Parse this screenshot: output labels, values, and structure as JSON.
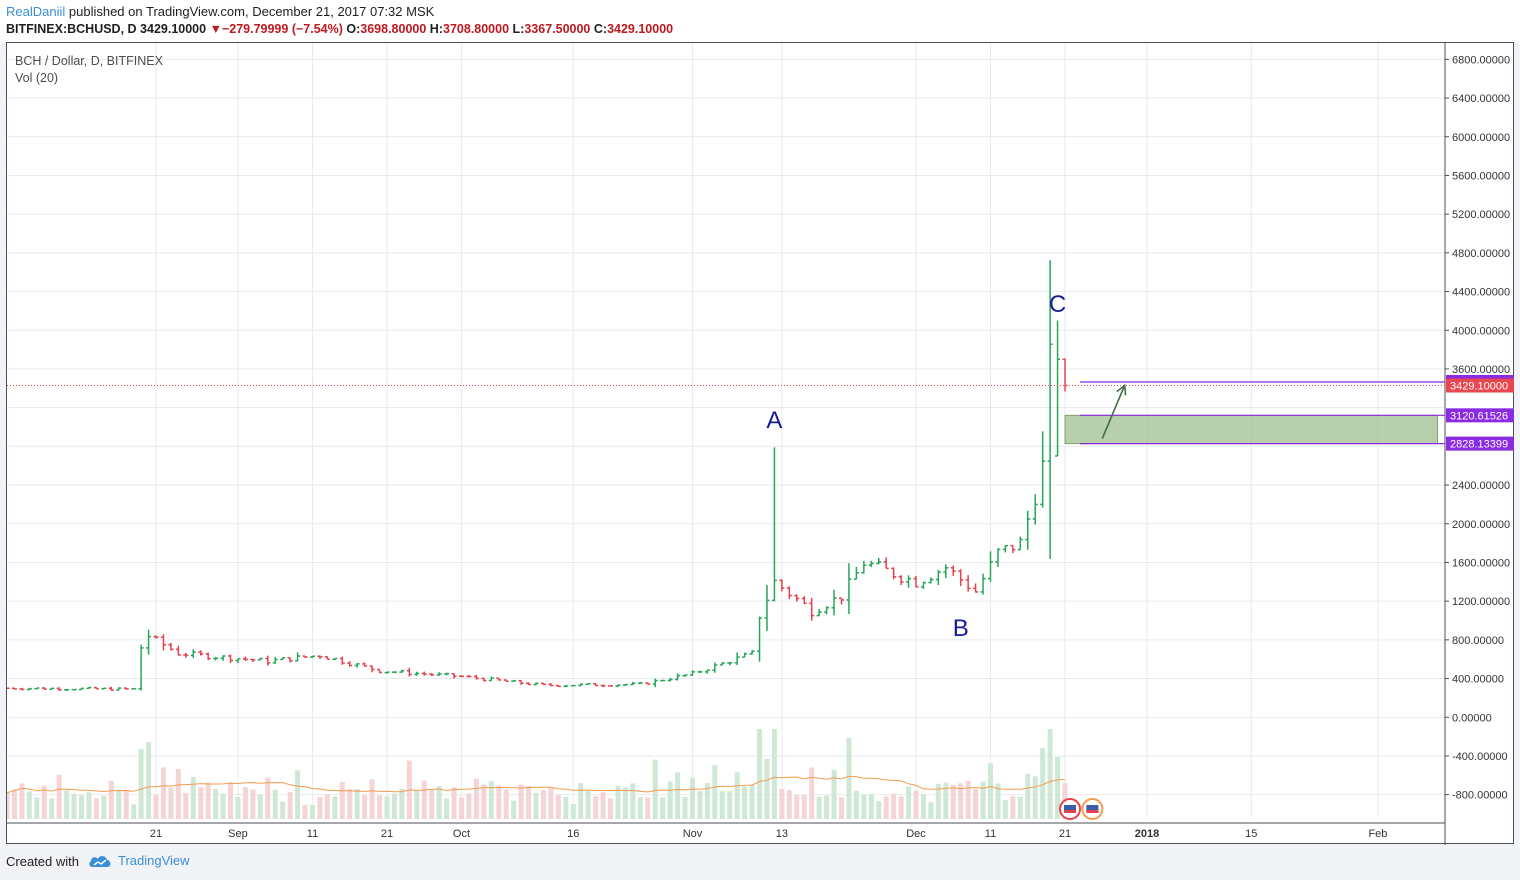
{
  "header": {
    "author": "RealDaniil",
    "published_text": "published on TradingView.com, December 21, 2017 07:32 MSK",
    "symbol": "BITFINEX:BCHUSD, D",
    "last": "3429.10000",
    "change": "−279.79999 (−7.54%)",
    "o_label": "O:",
    "o_value": "3698.80000",
    "h_label": "H:",
    "h_value": "3708.80000",
    "l_label": "L:",
    "l_value": "3367.50000",
    "c_label": "C:",
    "c_value": "3429.10000"
  },
  "legend": {
    "series_title": "BCH / Dollar, D, BITFINEX",
    "volume_title": "Vol (20)"
  },
  "footer": {
    "created_with": "Created with",
    "brand": "TradingView"
  },
  "colors": {
    "up": "#26a65b",
    "down": "#e8414b",
    "grid": "#e7eaee",
    "purple": "#8a2be2",
    "zone": "#9fbf8f",
    "ma": "#f39c4d",
    "label_text": "#1a1a9a",
    "price_tag": "#e8474f",
    "arrow": "#3f6f46"
  },
  "chart_data": {
    "type": "ohlc",
    "title": "BCH / Dollar, D, BITFINEX",
    "indicator": "Vol (20)",
    "y_range": [
      -1000,
      7000
    ],
    "y_ticks": [
      "6800.00000",
      "6400.00000",
      "6000.00000",
      "5600.00000",
      "5200.00000",
      "4800.00000",
      "4400.00000",
      "4000.00000",
      "3600.00000",
      "2400.00000",
      "2000.00000",
      "1600.00000",
      "1200.00000",
      "800.00000",
      "400.00000",
      "0.00000",
      "-400.00000",
      "-800.00000"
    ],
    "y_tick_values": [
      6800,
      6400,
      6000,
      5600,
      5200,
      4800,
      4400,
      4000,
      3600,
      2400,
      2000,
      1600,
      1200,
      800,
      400,
      0,
      -400,
      -800
    ],
    "x_ticks": [
      "21",
      "Sep",
      "11",
      "21",
      "Oct",
      "16",
      "Nov",
      "13",
      "Dec",
      "11",
      "21",
      "2018",
      "15",
      "Feb"
    ],
    "x_tick_dates": [
      "2017-08-21",
      "2017-09-01",
      "2017-09-11",
      "2017-09-21",
      "2017-10-01",
      "2017-10-16",
      "2017-11-01",
      "2017-11-13",
      "2017-12-01",
      "2017-12-11",
      "2017-12-21",
      "2018-01-01",
      "2018-01-15",
      "2018-02-01"
    ],
    "x_range": [
      "2017-08-01",
      "2018-02-10"
    ],
    "price_labels": [
      {
        "text": "3465.32534",
        "value": 3465.32534,
        "kind": "purple"
      },
      {
        "text": "3429.10000",
        "value": 3429.1,
        "kind": "last"
      },
      {
        "text": "3120.61526",
        "value": 3120.61526,
        "kind": "purple"
      },
      {
        "text": "2828.13399",
        "value": 2828.13399,
        "kind": "purple"
      }
    ],
    "current_price": 3429.1,
    "annotations": [
      {
        "text": "A",
        "date": "2017-11-12",
        "value": 2990
      },
      {
        "text": "B",
        "date": "2017-12-07",
        "value": 840
      },
      {
        "text": "C",
        "date": "2017-12-20",
        "value": 4190
      }
    ],
    "levels": [
      {
        "value": 3465.32534,
        "from": "2017-12-23",
        "to": "2018-02-10"
      },
      {
        "value": 3120.61526,
        "from": "2017-12-23",
        "to": "2018-02-10"
      },
      {
        "value": 2828.13399,
        "from": "2017-12-23",
        "to": "2018-02-10"
      }
    ],
    "zone": {
      "top": 3120.61526,
      "bottom": 2828.13399,
      "from": "2017-12-21",
      "to": "2018-02-09"
    },
    "arrow": {
      "from_date": "2017-12-26",
      "from_value": 2880,
      "to_date": "2017-12-29",
      "to_value": 3430
    },
    "ohlc_anchors": [
      {
        "date": "2017-08-01",
        "close": 300
      },
      {
        "date": "2017-08-18",
        "close": 290
      },
      {
        "date": "2017-08-19",
        "close": 720
      },
      {
        "date": "2017-08-20",
        "close": 840
      },
      {
        "date": "2017-08-24",
        "close": 660
      },
      {
        "date": "2017-09-05",
        "close": 580
      },
      {
        "date": "2017-09-12",
        "close": 640
      },
      {
        "date": "2017-09-20",
        "close": 480
      },
      {
        "date": "2017-10-01",
        "close": 420
      },
      {
        "date": "2017-10-12",
        "close": 330
      },
      {
        "date": "2017-10-25",
        "close": 340
      },
      {
        "date": "2017-11-01",
        "close": 450
      },
      {
        "date": "2017-11-09",
        "close": 660
      },
      {
        "date": "2017-11-10",
        "close": 1050
      },
      {
        "date": "2017-11-12",
        "close": 1400
      },
      {
        "date": "2017-11-17",
        "close": 1100
      },
      {
        "date": "2017-11-21",
        "close": 1250
      },
      {
        "date": "2017-11-24",
        "close": 1600
      },
      {
        "date": "2017-12-01",
        "close": 1400
      },
      {
        "date": "2017-12-05",
        "close": 1550
      },
      {
        "date": "2017-12-09",
        "close": 1300
      },
      {
        "date": "2017-12-12",
        "close": 1700
      },
      {
        "date": "2017-12-15",
        "close": 1800
      },
      {
        "date": "2017-12-17",
        "close": 2300
      },
      {
        "date": "2017-12-18",
        "close": 2600
      },
      {
        "date": "2017-12-19",
        "close": 3700
      },
      {
        "date": "2017-12-20",
        "close": 3700
      },
      {
        "date": "2017-12-21",
        "open": 3698.8,
        "high": 3708.8,
        "low": 3367.5,
        "close": 3429.1
      }
    ],
    "volume_ma_color": "#f39c4d"
  }
}
